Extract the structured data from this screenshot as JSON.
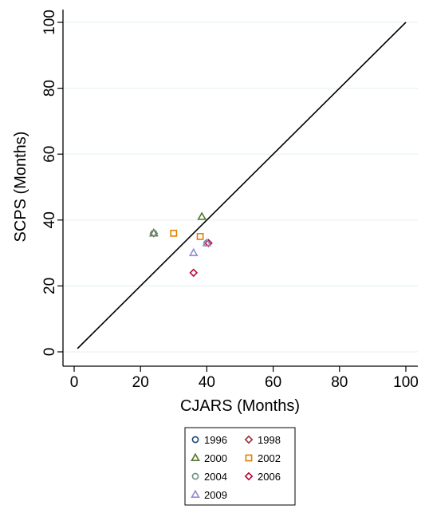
{
  "chart_data": {
    "type": "scatter",
    "xlabel": "CJARS (Months)",
    "ylabel": "SCPS (Months)",
    "xlim": [
      0,
      100
    ],
    "ylim": [
      0,
      100
    ],
    "xticks": [
      0,
      20,
      40,
      60,
      80,
      100
    ],
    "yticks": [
      0,
      20,
      40,
      60,
      80,
      100
    ],
    "grid": "horizontal",
    "reference_line": {
      "from": [
        1,
        1
      ],
      "to": [
        100,
        100
      ]
    },
    "legend_position": "bottom",
    "series": [
      {
        "name": "1996",
        "marker": "circle",
        "color": "#1a476f",
        "points": [
          [
            24,
            36
          ]
        ]
      },
      {
        "name": "1998",
        "marker": "diamond",
        "color": "#90353b",
        "points": [
          [
            24,
            36
          ]
        ]
      },
      {
        "name": "2000",
        "marker": "triangle",
        "color": "#55752f",
        "points": [
          [
            24,
            36
          ],
          [
            38.5,
            41
          ]
        ]
      },
      {
        "name": "2002",
        "marker": "square",
        "color": "#e37e00",
        "points": [
          [
            30,
            36
          ],
          [
            38,
            35
          ]
        ]
      },
      {
        "name": "2004",
        "marker": "circle",
        "color": "#6e8e84",
        "points": [
          [
            24,
            36
          ],
          [
            40,
            33
          ]
        ]
      },
      {
        "name": "2006",
        "marker": "diamond",
        "color": "#c10534",
        "points": [
          [
            36,
            24
          ],
          [
            40.5,
            33
          ]
        ]
      },
      {
        "name": "2009",
        "marker": "triangle",
        "color": "#938dd2",
        "points": [
          [
            36,
            30
          ],
          [
            40,
            33
          ]
        ]
      }
    ]
  }
}
